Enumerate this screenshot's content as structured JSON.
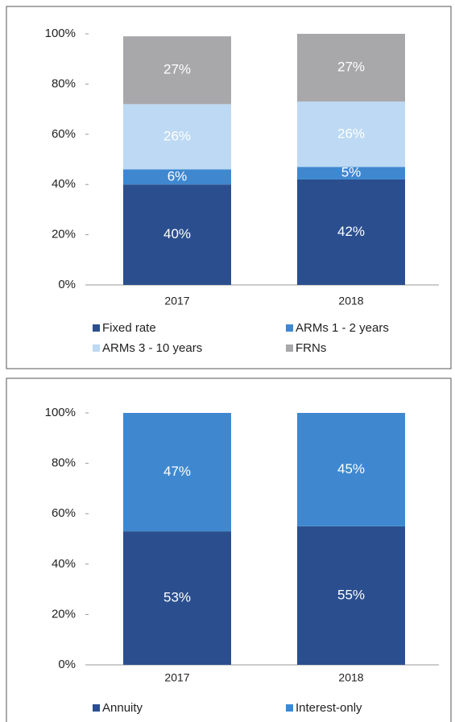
{
  "chart_data": [
    {
      "type": "stacked_bar",
      "categories": [
        "2017",
        "2018"
      ],
      "series": [
        {
          "name": "Fixed rate",
          "color": "#2b4f8e",
          "values": [
            40,
            42
          ],
          "value_labels": [
            "40%",
            "42%"
          ]
        },
        {
          "name": "ARMs 1 - 2 years",
          "color": "#3f88d0",
          "values": [
            6,
            5
          ],
          "value_labels": [
            "6%",
            "5%"
          ]
        },
        {
          "name": "ARMs 3 - 10 years",
          "color": "#bdd9f3",
          "values": [
            26,
            26
          ],
          "value_labels": [
            "26%",
            "26%"
          ]
        },
        {
          "name": "FRNs",
          "color": "#a8a8aa",
          "values": [
            27,
            27
          ],
          "value_labels": [
            "27%",
            "27%"
          ]
        }
      ],
      "ylim": [
        0,
        100
      ],
      "yticks": [
        {
          "value": 0,
          "label": "0%"
        },
        {
          "value": 20,
          "label": "20%"
        },
        {
          "value": 40,
          "label": "40%"
        },
        {
          "value": 60,
          "label": "60%"
        },
        {
          "value": 80,
          "label": "80%"
        },
        {
          "value": 100,
          "label": "100%"
        }
      ]
    },
    {
      "type": "stacked_bar",
      "categories": [
        "2017",
        "2018"
      ],
      "series": [
        {
          "name": "Annuity",
          "color": "#2b4f8e",
          "values": [
            53,
            55
          ],
          "value_labels": [
            "53%",
            "55%"
          ]
        },
        {
          "name": "Interest-only",
          "color": "#3f88d0",
          "values": [
            47,
            45
          ],
          "value_labels": [
            "47%",
            "45%"
          ]
        }
      ],
      "ylim": [
        0,
        100
      ],
      "yticks": [
        {
          "value": 0,
          "label": "0%"
        },
        {
          "value": 20,
          "label": "20%"
        },
        {
          "value": 40,
          "label": "40%"
        },
        {
          "value": 60,
          "label": "60%"
        },
        {
          "value": 80,
          "label": "80%"
        },
        {
          "value": 100,
          "label": "100%"
        }
      ]
    }
  ]
}
